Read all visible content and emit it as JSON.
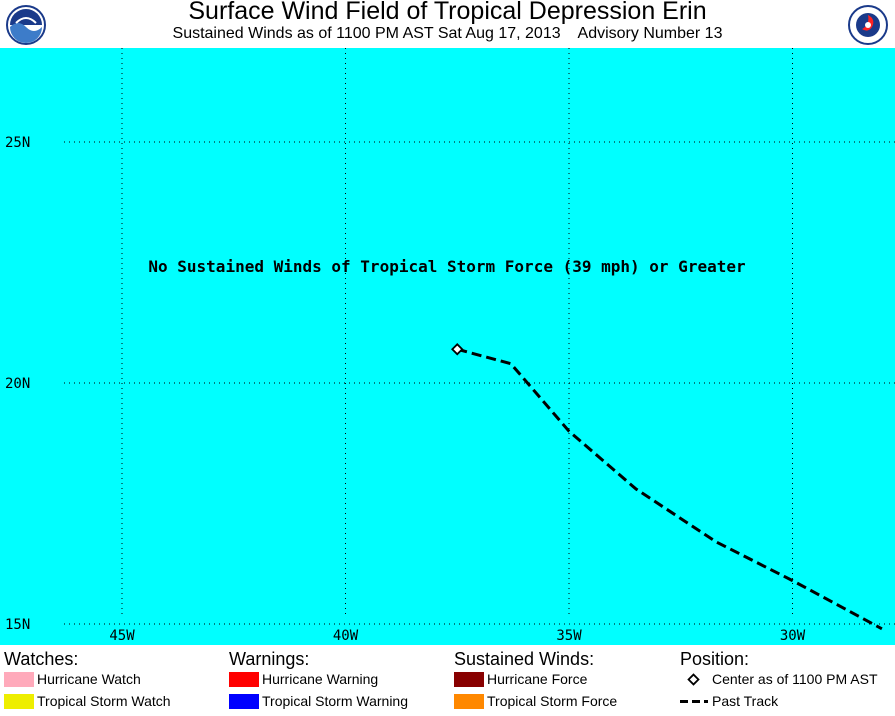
{
  "header": {
    "title": "Surface Wind Field of Tropical Depression Erin",
    "subtitle": "Sustained Winds as of 1100 PM AST Sat Aug 17, 2013    Advisory Number 13",
    "left_logo_icon": "noaa-logo-icon",
    "right_logo_icon": "nws-logo-icon"
  },
  "map": {
    "background_color": "#00ffff",
    "note": "No Sustained Winds of Tropical Storm Force (39 mph) or Greater",
    "lat_labels": [
      "25N",
      "20N",
      "15N"
    ],
    "lon_labels": [
      "45W",
      "40W",
      "35W",
      "30W"
    ],
    "center_position": {
      "lon": -37.5,
      "lat": 20.7
    },
    "past_track": [
      {
        "lon": -37.5,
        "lat": 20.7
      },
      {
        "lon": -36.3,
        "lat": 20.4
      },
      {
        "lon": -35.0,
        "lat": 19.0
      },
      {
        "lon": -33.5,
        "lat": 17.8
      },
      {
        "lon": -31.7,
        "lat": 16.7
      },
      {
        "lon": -30.0,
        "lat": 15.9
      },
      {
        "lon": -28.0,
        "lat": 14.9
      }
    ]
  },
  "legend": {
    "watches": {
      "heading": "Watches:",
      "items": [
        {
          "label": "Hurricane Watch",
          "color": "#ffaabb"
        },
        {
          "label": "Tropical Storm Watch",
          "color": "#eeee00"
        }
      ]
    },
    "warnings": {
      "heading": "Warnings:",
      "items": [
        {
          "label": "Hurricane Warning",
          "color": "#ff0000"
        },
        {
          "label": "Tropical Storm Warning",
          "color": "#0000ff"
        }
      ]
    },
    "sustained_winds": {
      "heading": "Sustained Winds:",
      "items": [
        {
          "label": "Hurricane Force",
          "color": "#880000"
        },
        {
          "label": "Tropical Storm Force",
          "color": "#ff8800"
        }
      ]
    },
    "position": {
      "heading": "Position:",
      "center_label": "Center as of 1100 PM AST",
      "center_icon": "diamond-icon",
      "track_label": "Past Track",
      "track_icon": "dashed-line-icon"
    }
  }
}
